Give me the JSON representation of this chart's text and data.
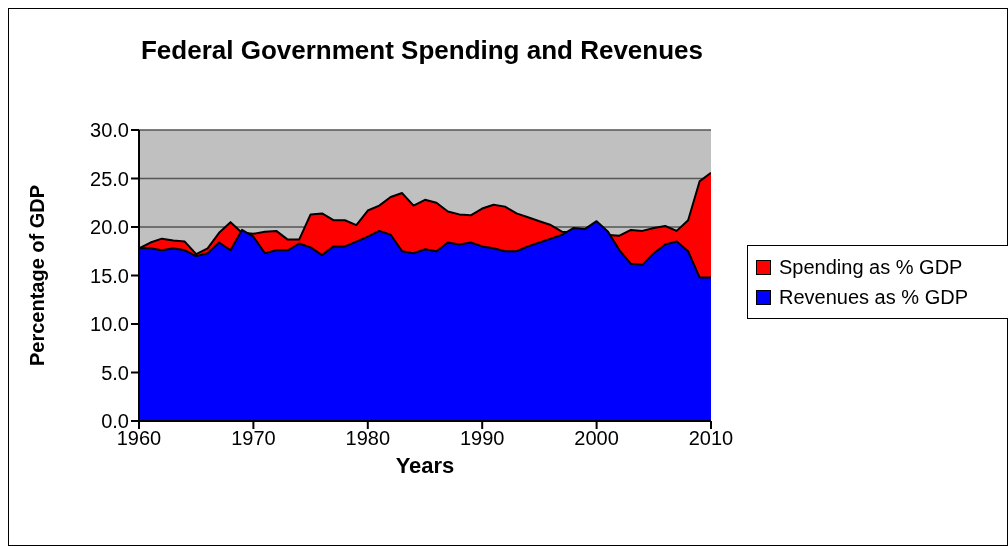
{
  "chart_data": {
    "type": "area",
    "title": "Federal Government Spending and Revenues",
    "xlabel": "Years",
    "ylabel": "Percentage of GDP",
    "x": [
      1960,
      1961,
      1962,
      1963,
      1964,
      1965,
      1966,
      1967,
      1968,
      1969,
      1970,
      1971,
      1972,
      1973,
      1974,
      1975,
      1976,
      1977,
      1978,
      1979,
      1980,
      1981,
      1982,
      1983,
      1984,
      1985,
      1986,
      1987,
      1988,
      1989,
      1990,
      1991,
      1992,
      1993,
      1994,
      1995,
      1996,
      1997,
      1998,
      1999,
      2000,
      2001,
      2002,
      2003,
      2004,
      2005,
      2006,
      2007,
      2008,
      2009,
      2010
    ],
    "series": [
      {
        "name": "Spending as % GDP",
        "color": "#ff0000",
        "values": [
          17.8,
          18.4,
          18.8,
          18.6,
          18.5,
          17.2,
          17.8,
          19.4,
          20.5,
          19.4,
          19.3,
          19.5,
          19.6,
          18.7,
          18.7,
          21.3,
          21.4,
          20.7,
          20.7,
          20.2,
          21.7,
          22.2,
          23.1,
          23.5,
          22.2,
          22.8,
          22.5,
          21.6,
          21.3,
          21.2,
          21.9,
          22.3,
          22.1,
          21.4,
          21.0,
          20.6,
          20.2,
          19.5,
          null,
          null,
          null,
          null,
          19.1,
          19.7,
          19.6,
          19.9,
          20.1,
          19.6,
          20.7,
          24.7,
          25.6
        ]
      },
      {
        "name": "Revenues as % GDP",
        "color": "#0000ff",
        "values": [
          17.8,
          17.8,
          17.6,
          17.8,
          17.6,
          17.0,
          17.3,
          18.4,
          17.6,
          19.7,
          19.0,
          17.3,
          17.6,
          17.6,
          18.3,
          17.9,
          17.1,
          18.0,
          18.0,
          18.5,
          19.0,
          19.6,
          19.2,
          17.5,
          17.3,
          17.7,
          17.5,
          18.4,
          18.2,
          18.4,
          18.0,
          17.8,
          17.5,
          17.5,
          18.0,
          18.4,
          18.8,
          19.2,
          19.9,
          19.8,
          20.6,
          19.5,
          17.6,
          16.2,
          16.1,
          17.3,
          18.2,
          18.5,
          17.5,
          14.8,
          14.8
        ]
      }
    ],
    "xlim": [
      1960,
      2010
    ],
    "xticks": [
      1960,
      1970,
      1980,
      1990,
      2000,
      2010
    ],
    "ylim": [
      0,
      30
    ],
    "yticks": [
      {
        "value": 0,
        "label": "0.0"
      },
      {
        "value": 5,
        "label": "5.0"
      },
      {
        "value": 10,
        "label": "10.0"
      },
      {
        "value": 15,
        "label": "15.0"
      },
      {
        "value": 20,
        "label": "20.0"
      },
      {
        "value": 25,
        "label": "25.0"
      },
      {
        "value": 30,
        "label": "30.0"
      }
    ],
    "grid": "y",
    "legend": "right"
  }
}
